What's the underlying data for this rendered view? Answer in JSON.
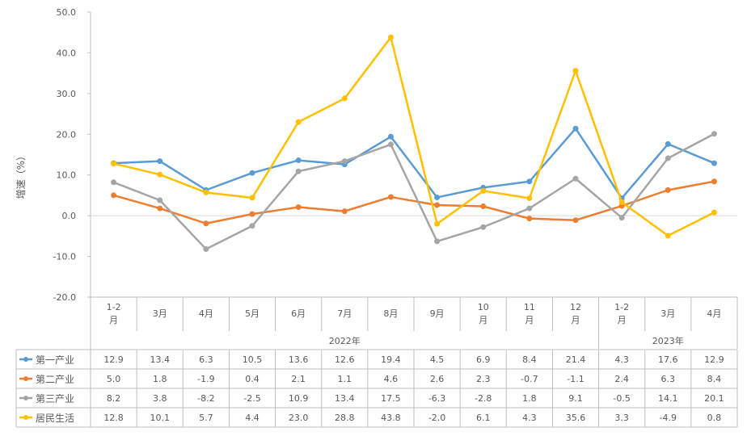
{
  "chart_data": {
    "type": "line",
    "ylabel": "增速（%）",
    "ylim": [
      -20,
      50
    ],
    "yticks": [
      "50.0",
      "40.0",
      "30.0",
      "20.0",
      "10.0",
      "0.0",
      "-10.0",
      "-20.0"
    ],
    "ytick_values": [
      50,
      40,
      30,
      20,
      10,
      0,
      -10,
      -20
    ],
    "categories": [
      "1-2月",
      "3月",
      "4月",
      "5月",
      "6月",
      "7月",
      "8月",
      "9月",
      "10月",
      "11月",
      "12月",
      "1-2月",
      "3月",
      "4月"
    ],
    "year_groups": [
      {
        "label": "2022年",
        "count": 11
      },
      {
        "label": "2023年",
        "count": 3
      }
    ],
    "grid": false,
    "legend": "table-bottom",
    "series": [
      {
        "name": "第一产业",
        "color": "#5B9BD5",
        "values": [
          12.9,
          13.4,
          6.3,
          10.5,
          13.6,
          12.6,
          19.4,
          4.5,
          6.9,
          8.4,
          21.4,
          4.3,
          17.6,
          12.9
        ]
      },
      {
        "name": "第二产业",
        "color": "#ED7D31",
        "values": [
          5.0,
          1.8,
          -1.9,
          0.4,
          2.1,
          1.1,
          4.6,
          2.6,
          2.3,
          -0.7,
          -1.1,
          2.4,
          6.3,
          8.4
        ]
      },
      {
        "name": "第三产业",
        "color": "#A5A5A5",
        "values": [
          8.2,
          3.8,
          -8.2,
          -2.5,
          10.9,
          13.4,
          17.5,
          -6.3,
          -2.8,
          1.8,
          9.1,
          -0.5,
          14.1,
          20.1
        ]
      },
      {
        "name": "居民生活",
        "color": "#FFC000",
        "values": [
          12.8,
          10.1,
          5.7,
          4.4,
          23.0,
          28.8,
          43.8,
          -2.0,
          6.1,
          4.3,
          35.6,
          3.3,
          -4.9,
          0.8
        ]
      }
    ]
  }
}
